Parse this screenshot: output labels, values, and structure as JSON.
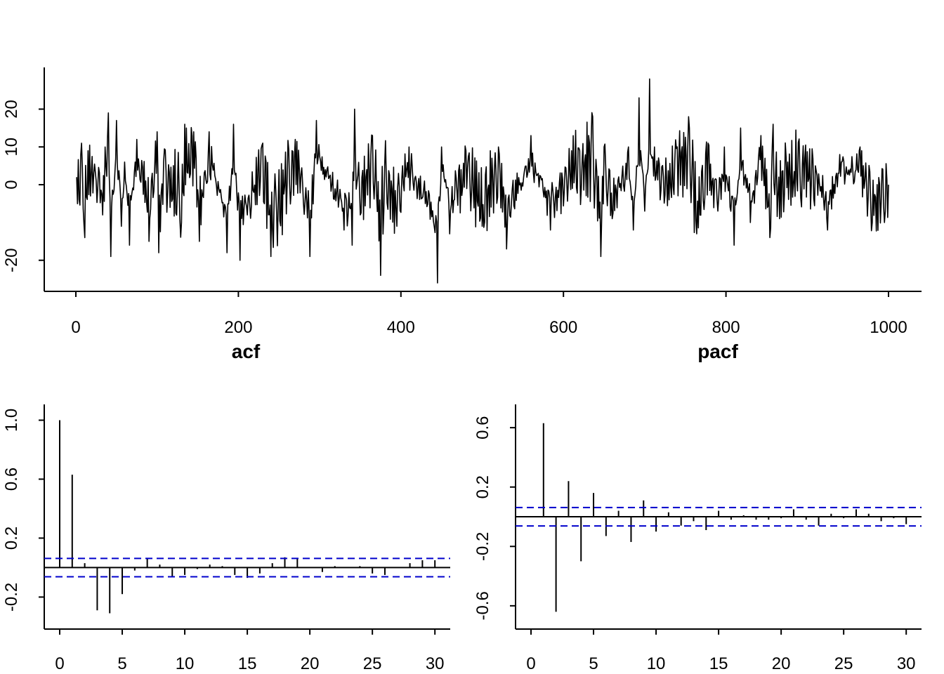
{
  "chart_data": [
    {
      "id": "series",
      "type": "line",
      "title": "",
      "xlabel": "",
      "ylabel": "",
      "xlim": [
        0,
        1000
      ],
      "ylim": [
        -26,
        29
      ],
      "x_ticks": [
        0,
        200,
        400,
        600,
        800,
        1000
      ],
      "y_ticks": [
        -20,
        0,
        10,
        20
      ],
      "y_tick_labels": [
        "-20",
        "0",
        "10",
        "20"
      ],
      "n": 1000,
      "line_color": "#000000",
      "grid": false,
      "anchors": [
        [
          1,
          2
        ],
        [
          4,
          -4
        ],
        [
          7,
          11
        ],
        [
          11,
          -14
        ],
        [
          15,
          9
        ],
        [
          25,
          1
        ],
        [
          33,
          -8
        ],
        [
          36,
          10
        ],
        [
          40,
          19
        ],
        [
          43,
          -19
        ],
        [
          50,
          17
        ],
        [
          56,
          -11
        ],
        [
          60,
          6
        ],
        [
          66,
          -16
        ],
        [
          75,
          12
        ],
        [
          86,
          1
        ],
        [
          90,
          -15
        ],
        [
          100,
          14
        ],
        [
          102,
          -18
        ],
        [
          108,
          6
        ],
        [
          130,
          -10
        ],
        [
          134,
          16
        ],
        [
          145,
          14
        ],
        [
          152,
          -15
        ],
        [
          164,
          14
        ],
        [
          186,
          -18
        ],
        [
          194,
          16
        ],
        [
          202,
          -20
        ],
        [
          230,
          11
        ],
        [
          240,
          -19
        ],
        [
          270,
          12
        ],
        [
          288,
          -19
        ],
        [
          296,
          17
        ],
        [
          330,
          -12
        ],
        [
          340,
          -16
        ],
        [
          343,
          20
        ],
        [
          350,
          -8
        ],
        [
          365,
          13
        ],
        [
          375,
          -24
        ],
        [
          380,
          5
        ],
        [
          395,
          -11
        ],
        [
          410,
          10
        ],
        [
          430,
          -5
        ],
        [
          445,
          -26
        ],
        [
          450,
          10
        ],
        [
          460,
          -13
        ],
        [
          480,
          9
        ],
        [
          500,
          -11
        ],
        [
          520,
          10
        ],
        [
          530,
          -17
        ],
        [
          560,
          13
        ],
        [
          584,
          -12
        ],
        [
          610,
          9
        ],
        [
          620,
          9
        ],
        [
          636,
          18
        ],
        [
          646,
          -19
        ],
        [
          650,
          10
        ],
        [
          660,
          -9
        ],
        [
          680,
          10
        ],
        [
          686,
          -12
        ],
        [
          693,
          23
        ],
        [
          700,
          -7
        ],
        [
          706,
          28
        ],
        [
          712,
          10
        ],
        [
          730,
          -4
        ],
        [
          740,
          10
        ],
        [
          754,
          18
        ],
        [
          764,
          -13
        ],
        [
          778,
          11
        ],
        [
          790,
          -7
        ],
        [
          798,
          10
        ],
        [
          810,
          -16
        ],
        [
          818,
          15
        ],
        [
          830,
          -10
        ],
        [
          843,
          13
        ],
        [
          854,
          -14
        ],
        [
          858,
          16
        ],
        [
          866,
          -9
        ],
        [
          876,
          6
        ],
        [
          897,
          7
        ],
        [
          910,
          5
        ],
        [
          925,
          -12
        ],
        [
          940,
          8
        ],
        [
          965,
          10
        ],
        [
          980,
          -10
        ],
        [
          995,
          -10
        ],
        [
          1000,
          0
        ]
      ]
    },
    {
      "id": "acf",
      "type": "bar",
      "title": "acf",
      "xlabel": "",
      "ylabel": "",
      "xlim": [
        0,
        31
      ],
      "ylim": [
        -0.36,
        1.05
      ],
      "x_ticks": [
        0,
        5,
        10,
        15,
        20,
        25,
        30
      ],
      "y_ticks": [
        -0.2,
        0.2,
        0.6,
        1.0
      ],
      "y_tick_labels": [
        "-0.2",
        "0.2",
        "0.6",
        "1.0"
      ],
      "confidence_bound": 0.062,
      "bound_color": "#0000cc",
      "lags": [
        0,
        1,
        2,
        3,
        4,
        5,
        6,
        7,
        8,
        9,
        10,
        11,
        12,
        13,
        14,
        15,
        16,
        17,
        18,
        19,
        20,
        21,
        22,
        23,
        24,
        25,
        26,
        27,
        28,
        29,
        30
      ],
      "values": [
        1.0,
        0.63,
        0.03,
        -0.29,
        -0.31,
        -0.18,
        -0.02,
        0.06,
        0.02,
        -0.06,
        -0.05,
        -0.01,
        0.02,
        0.01,
        -0.05,
        -0.07,
        -0.04,
        0.03,
        0.07,
        0.06,
        0.0,
        -0.03,
        0.01,
        0.0,
        0.01,
        -0.04,
        -0.05,
        0.0,
        0.03,
        0.05,
        0.05
      ]
    },
    {
      "id": "pacf",
      "type": "bar",
      "title": "pacf",
      "xlabel": "",
      "ylabel": "",
      "xlim": [
        0,
        31
      ],
      "ylim": [
        -0.7,
        0.7
      ],
      "x_ticks": [
        0,
        5,
        10,
        15,
        20,
        25,
        30
      ],
      "y_ticks": [
        -0.6,
        -0.2,
        0.2,
        0.6
      ],
      "y_tick_labels": [
        "-0.6",
        "-0.2",
        "0.2",
        "0.6"
      ],
      "confidence_bound": 0.062,
      "bound_color": "#0000cc",
      "lags": [
        1,
        2,
        3,
        4,
        5,
        6,
        7,
        8,
        9,
        10,
        11,
        12,
        13,
        14,
        15,
        16,
        17,
        18,
        19,
        20,
        21,
        22,
        23,
        24,
        25,
        26,
        27,
        28,
        29,
        30
      ],
      "values": [
        0.63,
        -0.64,
        0.24,
        -0.3,
        0.16,
        -0.13,
        0.04,
        -0.17,
        0.11,
        -0.1,
        0.03,
        -0.06,
        -0.03,
        -0.09,
        0.04,
        -0.02,
        0.01,
        -0.02,
        -0.02,
        -0.01,
        0.05,
        -0.02,
        -0.06,
        0.02,
        -0.01,
        0.05,
        0.02,
        -0.03,
        -0.01,
        -0.05
      ]
    }
  ]
}
